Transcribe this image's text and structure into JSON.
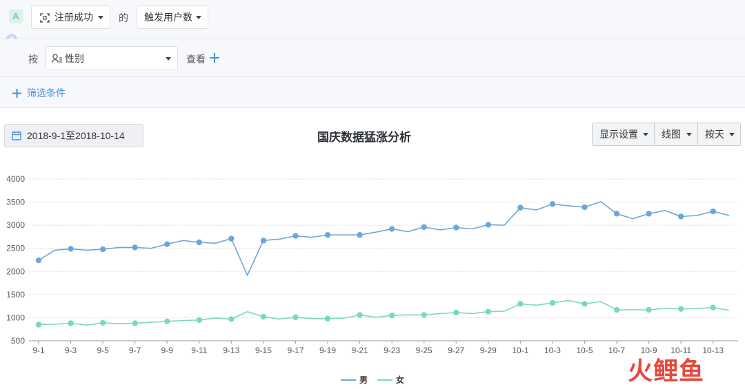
{
  "filters": {
    "badge": "A",
    "event_label": "注册成功",
    "of_label": "的",
    "metric_label": "触发用户数",
    "by_label": "按",
    "group_label": "性别",
    "view_label": "查看",
    "add_filter_label": "筛选条件"
  },
  "toolbar": {
    "date_range": "2018-9-1至2018-10-14",
    "display_settings": "显示设置",
    "chart_type": "线图",
    "granularity": "按天"
  },
  "watermark": "火鲤鱼",
  "colors": {
    "male": "#6ea6dc",
    "female": "#79d9bf",
    "accent": "#5b9bd5"
  },
  "chart_data": {
    "type": "line",
    "title": "国庆数据猛涨分析",
    "x": [
      "9-1",
      "9-2",
      "9-3",
      "9-4",
      "9-5",
      "9-6",
      "9-7",
      "9-8",
      "9-9",
      "9-10",
      "9-11",
      "9-12",
      "9-13",
      "9-14",
      "9-15",
      "9-16",
      "9-17",
      "9-18",
      "9-19",
      "9-20",
      "9-21",
      "9-22",
      "9-23",
      "9-24",
      "9-25",
      "9-26",
      "9-27",
      "9-28",
      "9-29",
      "9-30",
      "10-1",
      "10-2",
      "10-3",
      "10-4",
      "10-5",
      "10-6",
      "10-7",
      "10-8",
      "10-9",
      "10-10",
      "10-11",
      "10-12",
      "10-13",
      "10-14"
    ],
    "x_tick_labels": [
      "9-1",
      "9-3",
      "9-5",
      "9-7",
      "9-9",
      "9-11",
      "9-13",
      "9-15",
      "9-17",
      "9-19",
      "9-21",
      "9-23",
      "9-25",
      "9-27",
      "9-29",
      "10-1",
      "10-3",
      "10-5",
      "10-7",
      "10-9",
      "10-11",
      "10-13"
    ],
    "ylim": [
      500,
      4000
    ],
    "y_ticks": [
      500,
      1000,
      1500,
      2000,
      2500,
      3000,
      3500,
      4000
    ],
    "grid": true,
    "legend_position": "bottom-center",
    "series": [
      {
        "name": "男",
        "values": [
          2240,
          2460,
          2490,
          2460,
          2480,
          2520,
          2520,
          2500,
          2590,
          2670,
          2630,
          2610,
          2710,
          1920,
          2670,
          2700,
          2770,
          2740,
          2790,
          2790,
          2790,
          2850,
          2920,
          2860,
          2960,
          2900,
          2950,
          2920,
          3010,
          3000,
          3380,
          3330,
          3460,
          3420,
          3390,
          3510,
          3250,
          3140,
          3250,
          3320,
          3190,
          3210,
          3300,
          3210
        ]
      },
      {
        "name": "女",
        "values": [
          850,
          860,
          880,
          840,
          890,
          870,
          880,
          900,
          920,
          940,
          950,
          990,
          970,
          1130,
          1020,
          970,
          1010,
          980,
          980,
          990,
          1060,
          1010,
          1050,
          1060,
          1060,
          1090,
          1110,
          1090,
          1130,
          1140,
          1300,
          1270,
          1320,
          1370,
          1300,
          1350,
          1170,
          1170,
          1170,
          1200,
          1190,
          1200,
          1220,
          1160
        ]
      }
    ]
  }
}
